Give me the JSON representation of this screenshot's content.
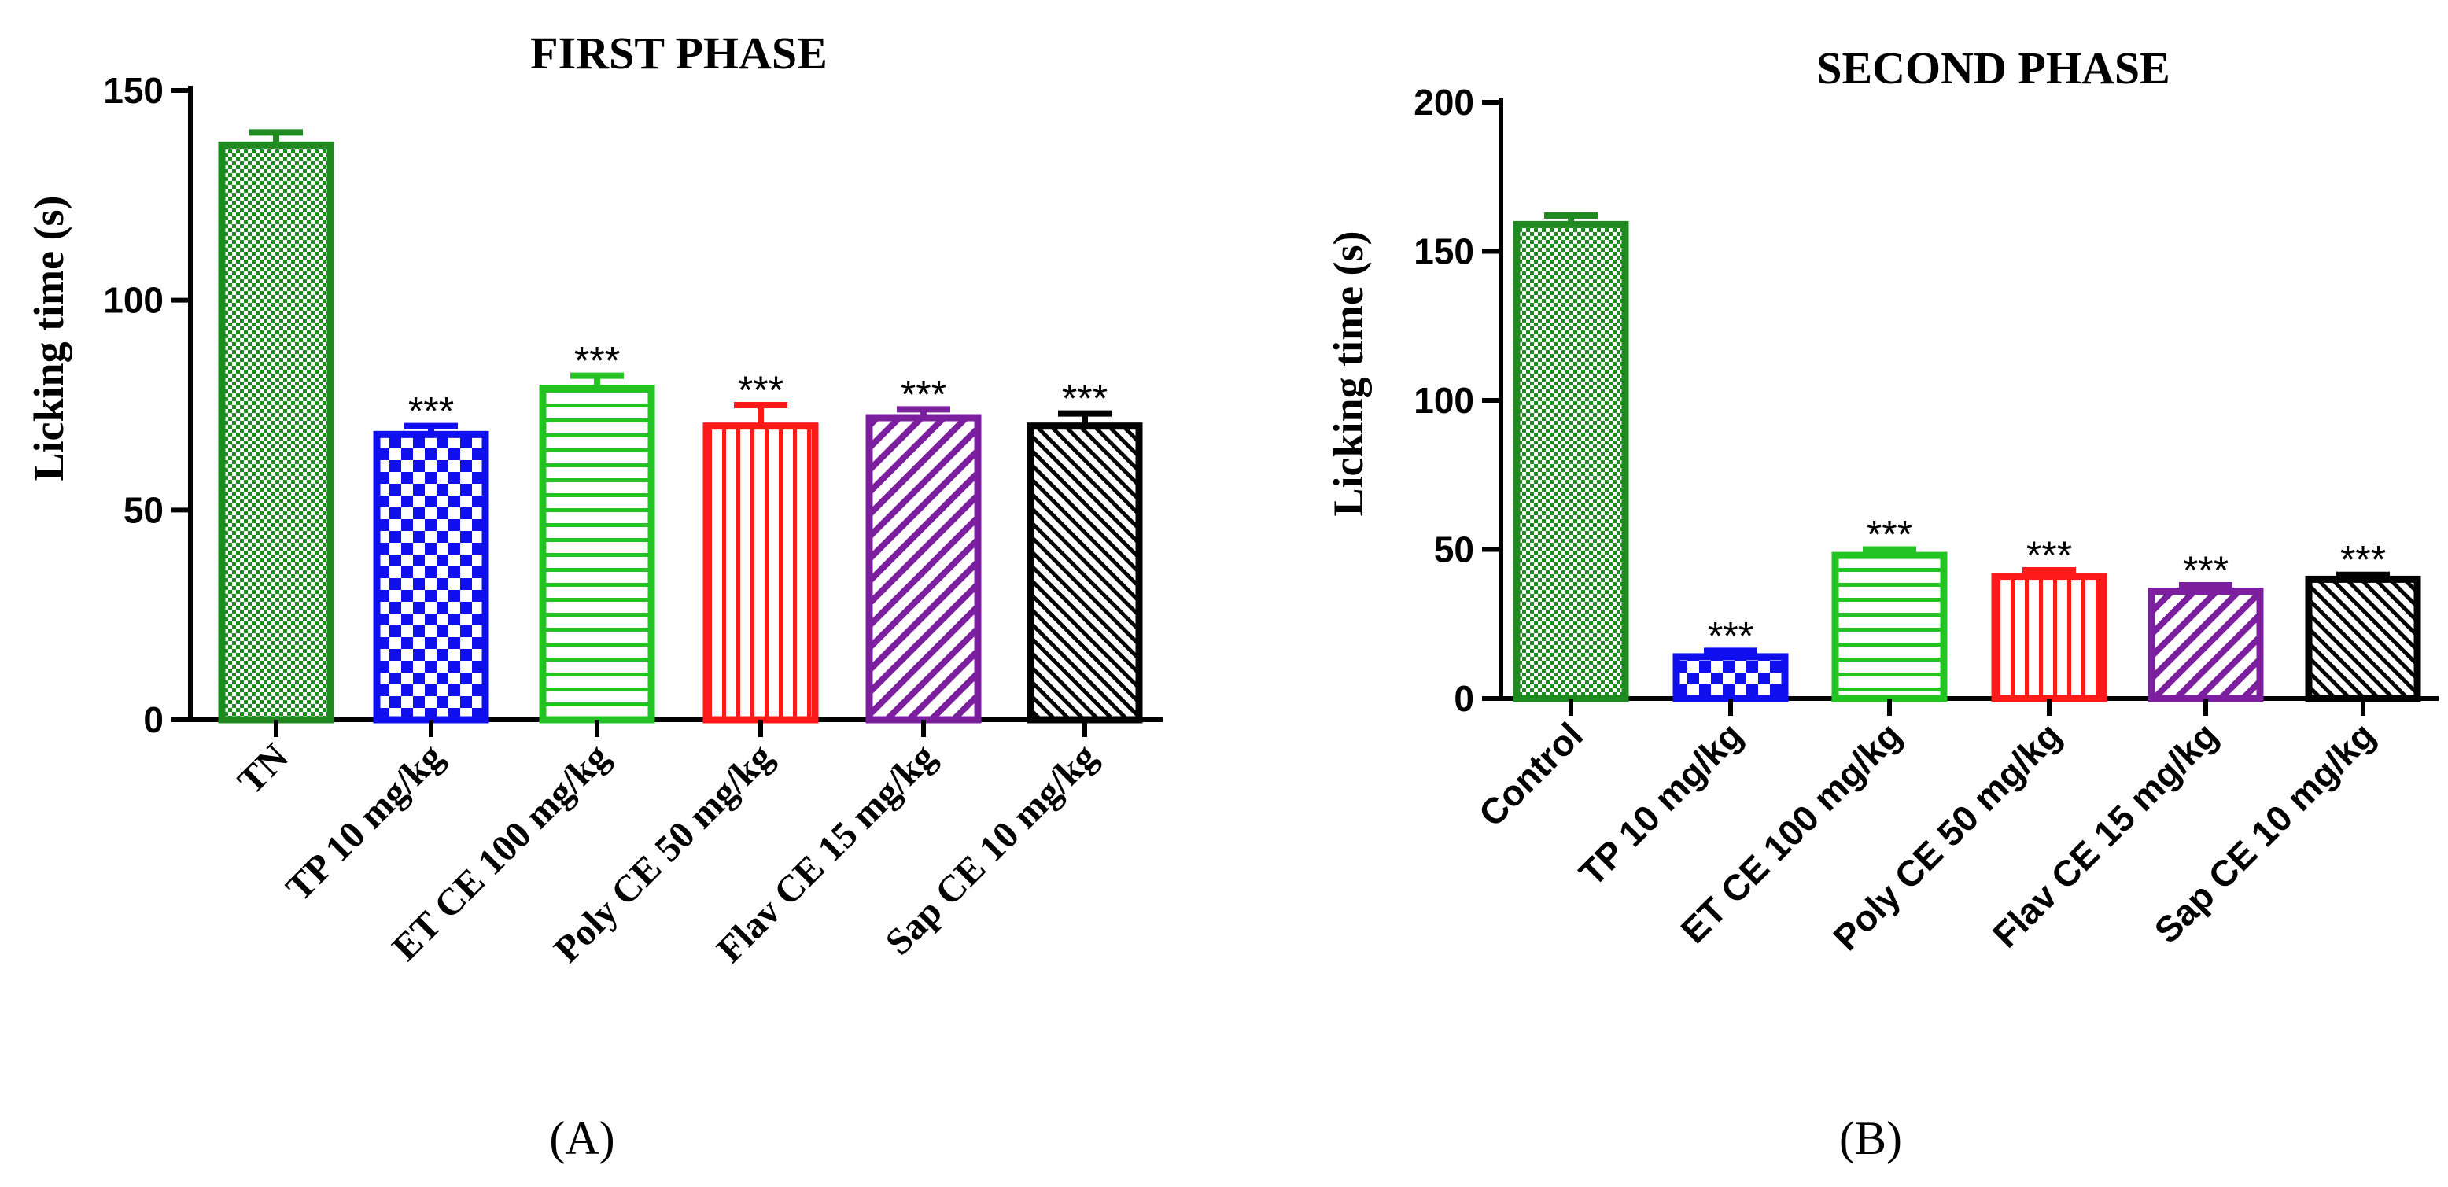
{
  "chart_data": [
    {
      "type": "bar",
      "panel_label": "(A)",
      "title": "FIRST PHASE",
      "ylabel": "Licking time (s)",
      "xlabel": "",
      "ylim": [
        0,
        150
      ],
      "yticks": [
        0,
        50,
        100,
        150
      ],
      "categories": [
        "TN",
        "TP 10 mg/kg",
        "ET CE 100 mg/kg",
        "Poly CE 50 mg/kg",
        "Flav CE 15 mg/kg",
        "Sap CE 10 mg/kg"
      ],
      "values": [
        137,
        68,
        79,
        70,
        72,
        70
      ],
      "errors": [
        3,
        2,
        3,
        5,
        2,
        3
      ],
      "significance": [
        "",
        "***",
        "***",
        "***",
        "***",
        "***"
      ],
      "colors": [
        "#1f8a1f",
        "#1010ee",
        "#22c322",
        "#ff1a1a",
        "#7b1f9e",
        "#000000"
      ],
      "patterns": [
        "fine-check",
        "check",
        "hlines",
        "vlines",
        "diag",
        "diag-dense"
      ]
    },
    {
      "type": "bar",
      "panel_label": "(B)",
      "title": "SECOND PHASE",
      "ylabel": "Licking time (s)",
      "xlabel": "",
      "ylim": [
        0,
        200
      ],
      "yticks": [
        0,
        50,
        100,
        150,
        200
      ],
      "categories": [
        "Control",
        "TP 10 mg/kg",
        "ET CE 100 mg/kg",
        "Poly CE 50 mg/kg",
        "Flav CE 15 mg/kg",
        "Sap CE 10 mg/kg"
      ],
      "values": [
        159,
        14,
        48,
        41,
        36,
        40
      ],
      "errors": [
        3,
        2,
        2,
        2,
        2,
        1.5
      ],
      "significance": [
        "",
        "***",
        "***",
        "***",
        "***",
        "***"
      ],
      "colors": [
        "#1f8a1f",
        "#1010ee",
        "#22c322",
        "#ff1a1a",
        "#7b1f9e",
        "#000000"
      ],
      "patterns": [
        "fine-check",
        "check",
        "hlines",
        "vlines",
        "diag",
        "diag-dense"
      ]
    }
  ]
}
